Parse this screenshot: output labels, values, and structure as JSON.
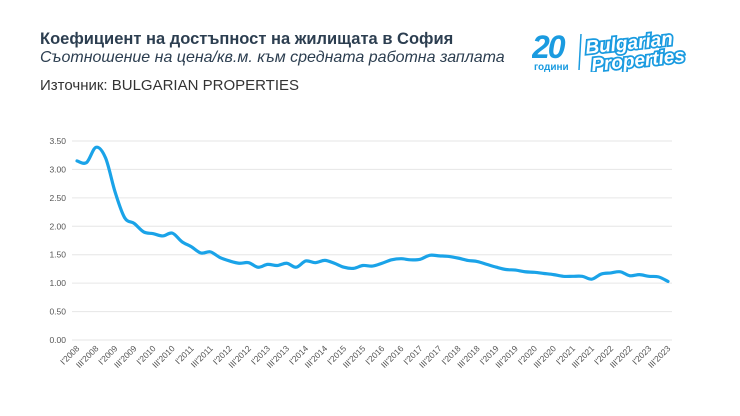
{
  "header": {
    "title": "Коефициент на достъпност на жилищата в София",
    "subtitle": "Съотношение на цена/кв.м. към средната работна заплата",
    "source": "Източник: BULGARIAN PROPERTIES"
  },
  "logo": {
    "number": "20",
    "years": "години",
    "line1": "Bulgarian",
    "line2": "Properties",
    "color": "#1a9be0"
  },
  "colors": {
    "line": "#1aa3e8",
    "grid": "#e6e6e6",
    "title": "#2c3e50"
  },
  "chart_data": {
    "type": "line",
    "title": "Коефициент на достъпност на жилищата в София",
    "subtitle": "Съотношение на цена/кв.м. към средната работна заплата",
    "ylim": [
      0,
      3.5
    ],
    "y_ticks": [
      "0.00",
      "0.50",
      "1.00",
      "1.50",
      "2.00",
      "2.50",
      "3.00",
      "3.50"
    ],
    "grid": true,
    "x_start": "I'2008",
    "x_end": "III'2023",
    "x_step": "quarter",
    "x_tick_labels": [
      "I'2008",
      "III'2008",
      "I'2009",
      "III'2009",
      "I'2010",
      "III'2010",
      "I'2011",
      "III'2011",
      "I'2012",
      "III'2012",
      "I'2013",
      "III'2013",
      "I'2014",
      "III'2014",
      "I'2015",
      "III'2015",
      "I'2016",
      "III'2016",
      "I'2017",
      "III'2017",
      "I'2018",
      "III'2018",
      "I'2019",
      "III'2019",
      "I'2020",
      "III'2020",
      "I'2021",
      "III'2021",
      "I'2022",
      "III'2022",
      "I'2023",
      "III'2023"
    ],
    "values": [
      3.15,
      3.12,
      3.39,
      3.2,
      2.6,
      2.15,
      2.05,
      1.9,
      1.87,
      1.83,
      1.88,
      1.73,
      1.64,
      1.53,
      1.55,
      1.45,
      1.39,
      1.35,
      1.36,
      1.28,
      1.33,
      1.31,
      1.35,
      1.28,
      1.39,
      1.36,
      1.4,
      1.35,
      1.28,
      1.26,
      1.31,
      1.3,
      1.35,
      1.41,
      1.43,
      1.41,
      1.42,
      1.49,
      1.48,
      1.47,
      1.44,
      1.4,
      1.38,
      1.33,
      1.28,
      1.24,
      1.23,
      1.2,
      1.19,
      1.17,
      1.15,
      1.12,
      1.12,
      1.12,
      1.07,
      1.16,
      1.18,
      1.2,
      1.13,
      1.15,
      1.12,
      1.11,
      1.03
    ]
  }
}
